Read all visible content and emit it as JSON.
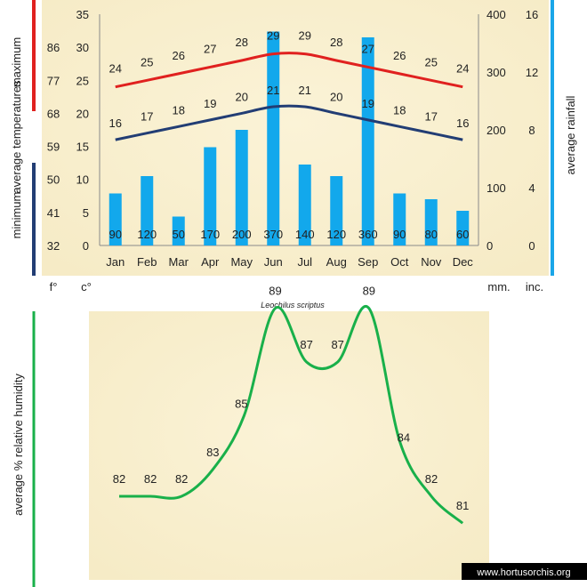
{
  "chart_data": [
    {
      "type": "bar+line",
      "species": "Leochilus scriptus",
      "categories": [
        "Jan",
        "Feb",
        "Mar",
        "Apr",
        "May",
        "Jun",
        "Jul",
        "Aug",
        "Sep",
        "Oct",
        "Nov",
        "Dec"
      ],
      "rainfall_mm": [
        90,
        120,
        50,
        170,
        200,
        370,
        140,
        120,
        360,
        90,
        80,
        60
      ],
      "rain_labels": [
        "90",
        "120",
        "50",
        "170",
        "200",
        "370",
        "140",
        "120",
        "360",
        "90",
        "80",
        "60"
      ],
      "max_temp_c": [
        24,
        25,
        26,
        27,
        28,
        29,
        29,
        28,
        27,
        26,
        25,
        24
      ],
      "max_labels": [
        "24",
        "25",
        "26",
        "27",
        "28",
        "29",
        "29",
        "28",
        "27",
        "26",
        "25",
        "24"
      ],
      "min_temp_c": [
        16,
        17,
        18,
        19,
        20,
        21,
        21,
        20,
        19,
        18,
        17,
        16
      ],
      "min_labels": [
        "16",
        "17",
        "18",
        "19",
        "20",
        "21",
        "21",
        "20",
        "19",
        "18",
        "17",
        "16"
      ],
      "celsius_ticks": [
        "0",
        "5",
        "10",
        "15",
        "20",
        "25",
        "30",
        "35"
      ],
      "fahrenheit_ticks": [
        "32",
        "41",
        "50",
        "59",
        "68",
        "77",
        "86"
      ],
      "mm_ticks": [
        "0",
        "100",
        "200",
        "300",
        "400"
      ],
      "inch_ticks": [
        "0",
        "4",
        "8",
        "12",
        "16"
      ],
      "ylim_c": [
        0,
        35
      ],
      "ylim_mm": [
        0,
        400
      ],
      "labels": {
        "maximum": "maximum",
        "minimum": "minimum",
        "average_temperatures": "average  temperatures",
        "average_rainfall": "average rainfall",
        "unit_f": "f°",
        "unit_c": "c°",
        "unit_mm": "mm.",
        "unit_inc": "inc."
      },
      "colors": {
        "max": "#e0211f",
        "min": "#223d74",
        "bars": "#12a8ec",
        "rain_axis": "#1aa6e8",
        "background": "#faf1d2"
      }
    },
    {
      "type": "line",
      "categories": [
        "Jan",
        "Feb",
        "Mar",
        "Apr",
        "May",
        "Jun",
        "Jul",
        "Aug",
        "Sep",
        "Oct",
        "Nov",
        "Dec"
      ],
      "humidity": [
        82,
        82,
        82,
        83,
        85,
        89,
        87,
        87,
        89,
        84,
        82,
        81
      ],
      "humidity_labels": [
        "82",
        "82",
        "82",
        "83",
        "85",
        "89",
        "87",
        "87",
        "89",
        "84",
        "82",
        "81"
      ],
      "ylabel": "average %  relative humidity",
      "colors": {
        "line": "#19b04a"
      }
    }
  ],
  "watermark": "www.hortusorchis.org"
}
